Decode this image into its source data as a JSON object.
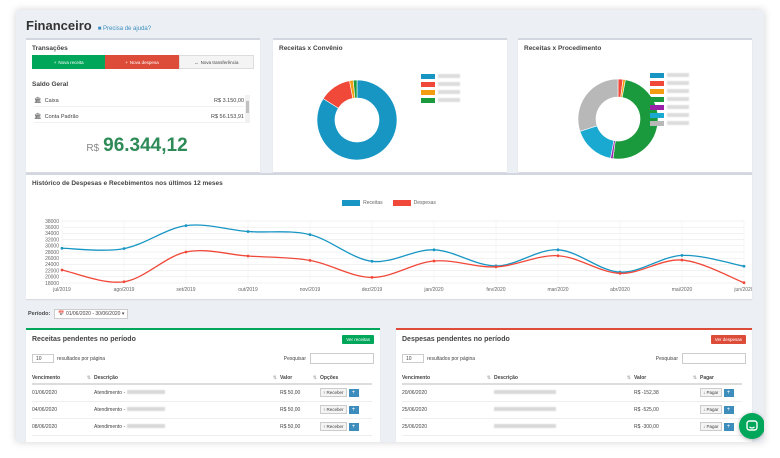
{
  "header": {
    "title": "Financeiro",
    "help_link": "Precisa de ajuda?"
  },
  "transacoes": {
    "title": "Transações",
    "buttons": {
      "receita": "Nova receita",
      "despesa": "Nova despesa",
      "transferencia": "Nova transferência"
    },
    "saldo_label": "Saldo Geral",
    "accounts": [
      {
        "name": "Caixa",
        "value": "R$ 3.150,00"
      },
      {
        "name": "Conta Padrão",
        "value": "R$ 56.153,91"
      }
    ],
    "total_currency": "R$",
    "total_value": "96.344,12"
  },
  "convenio": {
    "title": "Receitas x Convênio",
    "slices": [
      {
        "value": 84,
        "color": "#1796c4"
      },
      {
        "value": 13,
        "color": "#f0493a"
      },
      {
        "value": 1.5,
        "color": "#f39c12"
      },
      {
        "value": 1.5,
        "color": "#1a9a3c"
      }
    ],
    "legend_colors": [
      "#1796c4",
      "#f0493a",
      "#f39c12",
      "#1a9a3c"
    ]
  },
  "procedimento": {
    "title": "Receitas x Procedimento",
    "slices": [
      {
        "value": 2,
        "color": "#f0493a"
      },
      {
        "value": 1,
        "color": "#f39c12"
      },
      {
        "value": 49,
        "color": "#1a9a3c"
      },
      {
        "value": 1,
        "color": "#9b1fa8"
      },
      {
        "value": 17,
        "color": "#1aa9d0"
      },
      {
        "value": 30,
        "color": "#b8b8b8"
      }
    ],
    "legend_colors": [
      "#1796c4",
      "#f0493a",
      "#f39c12",
      "#1a9a3c",
      "#9b1fa8",
      "#1aa9d0",
      "#b8b8b8"
    ]
  },
  "historico": {
    "title": "Histórico de Despesas e Recebimentos nos últimos 12 meses",
    "legend": {
      "receitas": "Receitas",
      "despesas": "Despesas"
    },
    "colors": {
      "receitas": "#1796c4",
      "despesas": "#f0493a"
    }
  },
  "chart_data": {
    "type": "line",
    "categories": [
      "jul/2019",
      "ago/2019",
      "set/2019",
      "out/2019",
      "nov/2019",
      "dez/2019",
      "jan/2020",
      "fev/2020",
      "mar/2020",
      "abr/2020",
      "mai/2020",
      "jun/2020"
    ],
    "series": [
      {
        "name": "Receitas",
        "values": [
          29200,
          29100,
          36500,
          34600,
          33600,
          25000,
          28700,
          23500,
          28700,
          21500,
          26900,
          23400
        ]
      },
      {
        "name": "Despesas",
        "values": [
          22200,
          18400,
          28000,
          26700,
          25300,
          19800,
          25100,
          23200,
          26800,
          21100,
          25400,
          18100
        ]
      }
    ],
    "yticks": [
      "38000",
      "36000",
      "34000",
      "32000",
      "30000",
      "28000",
      "26000",
      "24000",
      "22000",
      "20000",
      "18000"
    ],
    "ylim": [
      18000,
      38000
    ],
    "grid": true,
    "legend": "top"
  },
  "periodo": {
    "label": "Período:",
    "range": "01/06/2020 - 30/06/2020"
  },
  "receitas_pend": {
    "title": "Receitas pendentes no período",
    "action": "Ver receitas",
    "length_value": "10",
    "length_text": "resultados por página",
    "search_label": "Pesquisar",
    "headers": [
      "Vencimento",
      "Descrição",
      "Valor",
      "Opções"
    ],
    "action_label": "Receber",
    "rows": [
      {
        "date": "01/06/2020",
        "desc": "Atendimento -",
        "value": "R$ 50,00"
      },
      {
        "date": "04/06/2020",
        "desc": "Atendimento -",
        "value": "R$ 50,00"
      },
      {
        "date": "08/06/2020",
        "desc": "Atendimento -",
        "value": "R$ 50,00"
      }
    ]
  },
  "despesas_pend": {
    "title": "Despesas pendentes no período",
    "action": "Ver despesas",
    "length_value": "10",
    "length_text": "resultados por página",
    "search_label": "Pesquisar",
    "headers": [
      "Vencimento",
      "Descrição",
      "Valor",
      "Pagar"
    ],
    "action_label": "Pagar",
    "rows": [
      {
        "date": "20/06/2020",
        "value": "R$ -152,38"
      },
      {
        "date": "25/06/2020",
        "value": "R$ -525,00"
      },
      {
        "date": "25/06/2020",
        "value": "R$ -300,00"
      }
    ]
  }
}
